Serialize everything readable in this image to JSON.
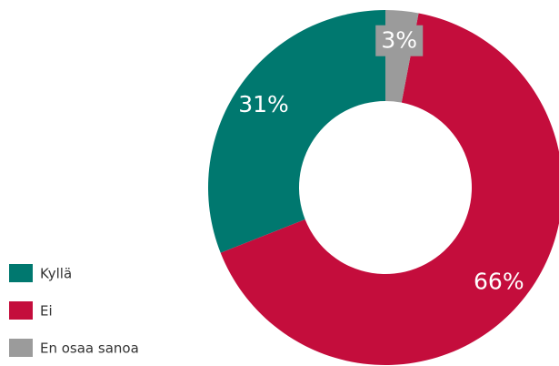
{
  "chart_data": {
    "type": "donut",
    "categories": [
      "Kyllä",
      "Ei",
      "En osaa sanoa"
    ],
    "values": [
      31,
      66,
      3
    ],
    "value_labels": [
      "31%",
      "66%",
      "3%"
    ],
    "colors": [
      "#00786f",
      "#c40d3c",
      "#9b9b9b"
    ]
  }
}
